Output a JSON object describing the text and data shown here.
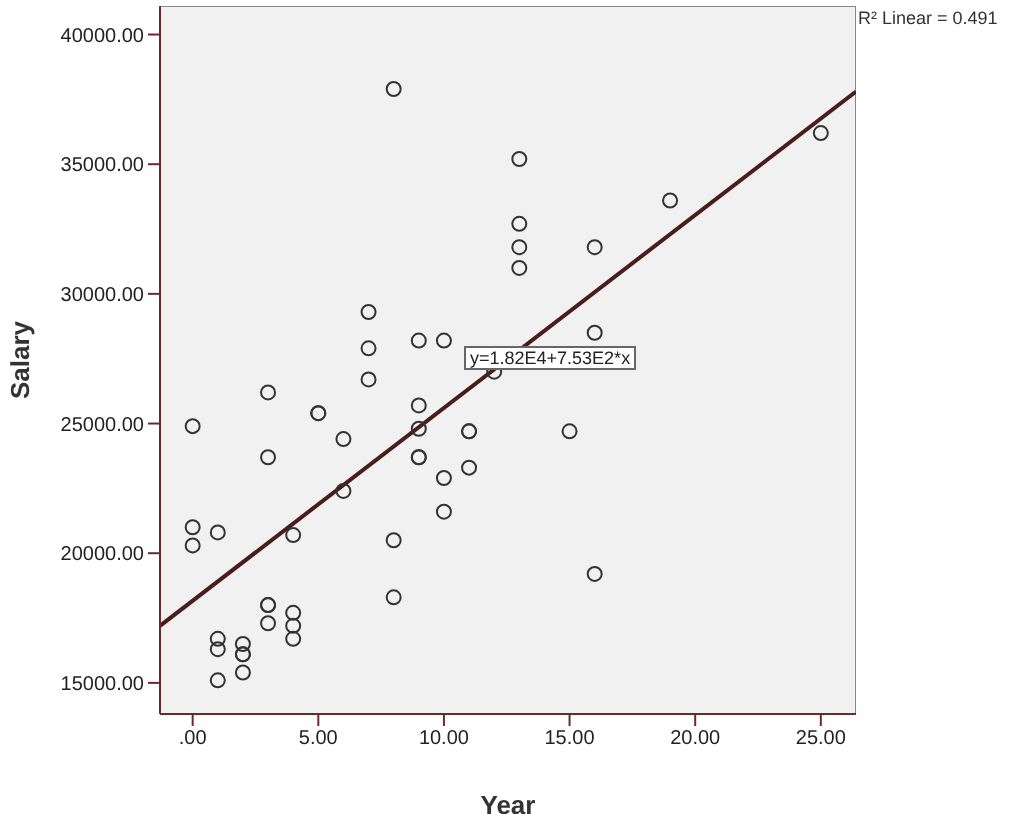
{
  "chart_data": {
    "type": "scatter",
    "xlabel": "Year",
    "ylabel": "Salary",
    "xlim": [
      -1.3,
      26.4
    ],
    "ylim": [
      13800,
      41100
    ],
    "xticks": [
      {
        "value": 0,
        "label": ".00"
      },
      {
        "value": 5,
        "label": "5.00"
      },
      {
        "value": 10,
        "label": "10.00"
      },
      {
        "value": 15,
        "label": "15.00"
      },
      {
        "value": 20,
        "label": "20.00"
      },
      {
        "value": 25,
        "label": "25.00"
      }
    ],
    "yticks": [
      {
        "value": 15000,
        "label": "15000.00"
      },
      {
        "value": 20000,
        "label": "20000.00"
      },
      {
        "value": 25000,
        "label": "25000.00"
      },
      {
        "value": 30000,
        "label": "30000.00"
      },
      {
        "value": 35000,
        "label": "35000.00"
      },
      {
        "value": 40000,
        "label": "40000.00"
      }
    ],
    "grid": false,
    "legend": false,
    "annotations": [
      "R² Linear = 0.491",
      "y=1.82E4+7.53E2*x"
    ],
    "series": [
      {
        "marker": "circle",
        "color": "#333333",
        "x": [
          8,
          13,
          13,
          13,
          13,
          7,
          7,
          7,
          9,
          10,
          12,
          3,
          25,
          19,
          16,
          16,
          0,
          5,
          5,
          6,
          3,
          9,
          9,
          11,
          11,
          15,
          9,
          9,
          10,
          11,
          6,
          10,
          0,
          0,
          1,
          4,
          8,
          8,
          3,
          3,
          4,
          3,
          4,
          1,
          4,
          2,
          1,
          2,
          2,
          2,
          1,
          16
        ],
        "values": [
          37900,
          35200,
          32700,
          31800,
          31000,
          29300,
          27900,
          26700,
          28200,
          28200,
          27000,
          26200,
          36200,
          33600,
          31800,
          28500,
          24900,
          25400,
          25400,
          24400,
          23700,
          25700,
          24800,
          24700,
          24700,
          24700,
          23700,
          23700,
          22900,
          23300,
          22400,
          21600,
          21000,
          20300,
          20800,
          20700,
          20500,
          18300,
          18000,
          18000,
          17700,
          17300,
          17200,
          16700,
          16700,
          16500,
          16300,
          16100,
          16100,
          15400,
          15100,
          19200
        ]
      },
      {
        "type": "line",
        "color": "#4a1c1c",
        "x": [
          -1.3,
          26.4
        ],
        "values": [
          17200,
          37800
        ]
      }
    ]
  }
}
